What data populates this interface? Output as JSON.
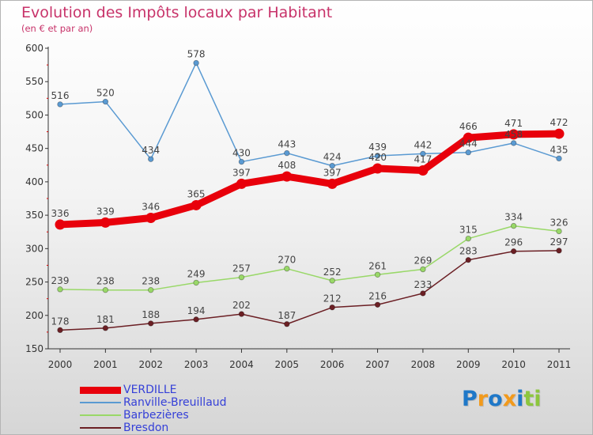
{
  "chart_data": {
    "type": "line",
    "title": "Evolution des Impôts locaux par Habitant",
    "subtitle": "(en € et par an)",
    "x": [
      "2000",
      "2001",
      "2002",
      "2003",
      "2004",
      "2005",
      "2006",
      "2007",
      "2008",
      "2009",
      "2010",
      "2011"
    ],
    "ylim": [
      150,
      600
    ],
    "yticks": [
      150,
      200,
      250,
      300,
      350,
      400,
      450,
      500,
      550,
      600
    ],
    "grid": false,
    "legend_position": "bottom-left",
    "series": [
      {
        "name": "VERDILLE",
        "color": "#e8000b",
        "values": [
          336,
          339,
          346,
          365,
          397,
          408,
          397,
          420,
          417,
          466,
          471,
          472
        ]
      },
      {
        "name": "Ranville-Breuillaud",
        "color": "#5a9ad2",
        "values": [
          516,
          520,
          434,
          578,
          430,
          443,
          424,
          439,
          442,
          444,
          458,
          435
        ]
      },
      {
        "name": "Barbezières",
        "color": "#99d868",
        "values": [
          239,
          238,
          238,
          249,
          257,
          270,
          252,
          261,
          269,
          315,
          334,
          326
        ]
      },
      {
        "name": "Bresdon",
        "color": "#6b1f24",
        "values": [
          178,
          181,
          188,
          194,
          202,
          187,
          212,
          216,
          233,
          283,
          296,
          297
        ]
      }
    ]
  },
  "logo": {
    "text": "Proxiti",
    "letters": [
      {
        "ch": "P",
        "color": "#1f78c8"
      },
      {
        "ch": "r",
        "color": "#f29a1c"
      },
      {
        "ch": "o",
        "color": "#1f78c8"
      },
      {
        "ch": "x",
        "color": "#f29a1c"
      },
      {
        "ch": "i",
        "color": "#1f78c8"
      },
      {
        "ch": "t",
        "color": "#8cc63e"
      },
      {
        "ch": "i",
        "color": "#8cc63e"
      }
    ]
  }
}
